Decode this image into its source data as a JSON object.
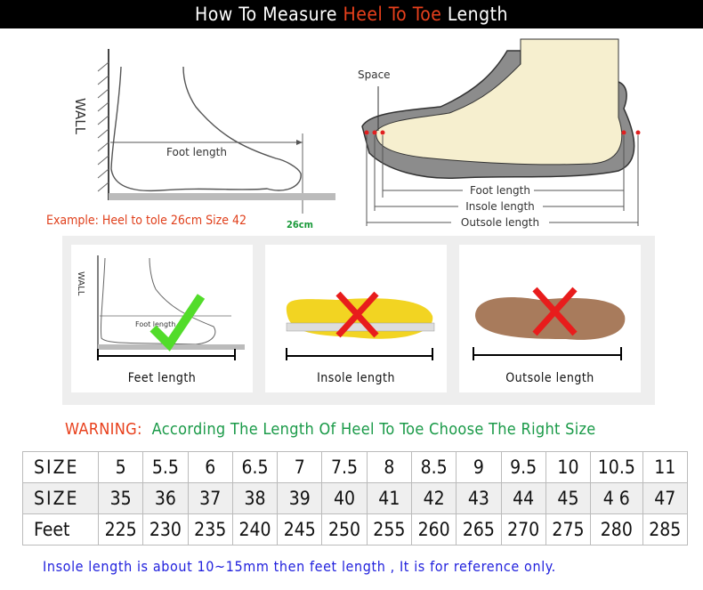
{
  "header": {
    "title_pre": "How To Measure ",
    "title_highlight": "Heel To Toe",
    "title_post": " Length",
    "highlight_color": "#e8401c"
  },
  "diagram_left": {
    "wall_label": "WALL",
    "foot_length_label": "Foot length",
    "example": "Example: Heel to tole 26cm Size 42",
    "measure": "26cm"
  },
  "diagram_right": {
    "space_label": "Space",
    "foot_length": "Foot length",
    "insole_length": "Insole length",
    "outsole_length": "Outsole length"
  },
  "methods": [
    {
      "label": "Feet length",
      "mark": "check-icon",
      "correct": true,
      "wall_label": "WALL",
      "foot_label": "Foot length"
    },
    {
      "label": "Insole length",
      "mark": "cross-icon",
      "correct": false
    },
    {
      "label": "Outsole length",
      "mark": "cross-icon",
      "correct": false
    }
  ],
  "warning": {
    "prefix": "WARNING:",
    "text": "According The Length Of Heel To Toe Choose The Right Size"
  },
  "size_table": {
    "rows": [
      {
        "header": "SIZE",
        "values": [
          "5",
          "5.5",
          "6",
          "6.5",
          "7",
          "7.5",
          "8",
          "8.5",
          "9",
          "9.5",
          "10",
          "10.5",
          "11"
        ]
      },
      {
        "header": "SIZE",
        "values": [
          "35",
          "36",
          "37",
          "38",
          "39",
          "40",
          "41",
          "42",
          "43",
          "44",
          "45",
          "4 6",
          "47"
        ]
      },
      {
        "header": "Feet",
        "values": [
          "225",
          "230",
          "235",
          "240",
          "245",
          "250",
          "255",
          "260",
          "265",
          "270",
          "275",
          "280",
          "285"
        ]
      }
    ]
  },
  "note": "Insole length is about 10~15mm then feet length , It is for reference only."
}
